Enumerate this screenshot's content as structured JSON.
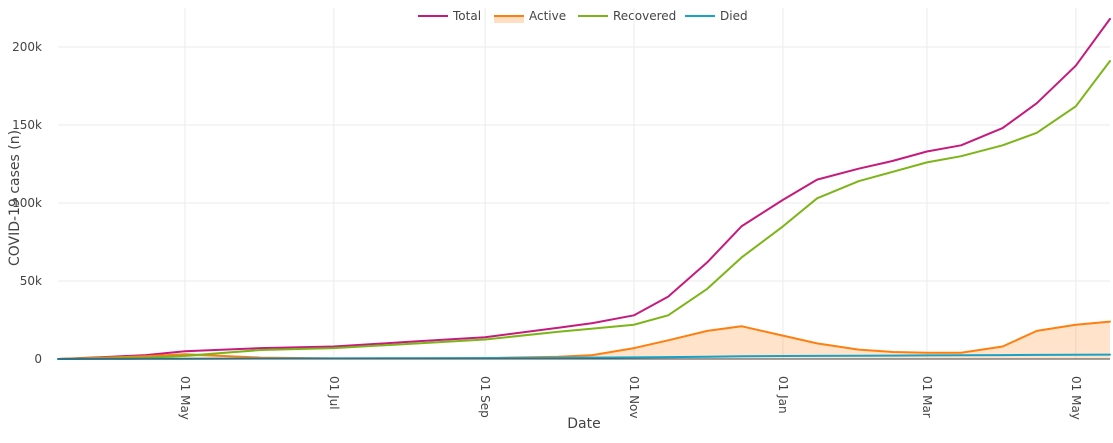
{
  "chart_data": {
    "type": "line",
    "xlabel": "Date",
    "ylabel": "COVID-19 cases (n)",
    "x_range": [
      "2020-03-10",
      "2021-05-15"
    ],
    "ylim": [
      0,
      225000
    ],
    "grid": true,
    "legend_position": "top-center",
    "x_ticks": [
      {
        "date": "2020-05-01",
        "label": "01 May"
      },
      {
        "date": "2020-07-01",
        "label": "01 Jul"
      },
      {
        "date": "2020-09-01",
        "label": "01 Sep"
      },
      {
        "date": "2020-11-01",
        "label": "01 Nov"
      },
      {
        "date": "2021-01-01",
        "label": "01 Jan"
      },
      {
        "date": "2021-03-01",
        "label": "01 Mar"
      },
      {
        "date": "2021-05-01",
        "label": "01 May"
      }
    ],
    "y_ticks": [
      {
        "value": 0,
        "label": "0"
      },
      {
        "value": 50000,
        "label": "50k"
      },
      {
        "value": 100000,
        "label": "100k"
      },
      {
        "value": 150000,
        "label": "150k"
      },
      {
        "value": 200000,
        "label": "200k"
      }
    ],
    "x": [
      "2020-03-10",
      "2020-04-01",
      "2020-04-15",
      "2020-05-01",
      "2020-06-01",
      "2020-07-01",
      "2020-08-01",
      "2020-09-01",
      "2020-10-01",
      "2020-10-15",
      "2020-11-01",
      "2020-11-15",
      "2020-12-01",
      "2020-12-15",
      "2021-01-01",
      "2021-01-15",
      "2021-02-01",
      "2021-02-15",
      "2021-03-01",
      "2021-03-15",
      "2021-04-01",
      "2021-04-15",
      "2021-05-01",
      "2021-05-15"
    ],
    "series": [
      {
        "name": "Total",
        "color": "#c51b7d",
        "values": [
          0,
          1500,
          2500,
          5000,
          7000,
          8000,
          11000,
          14000,
          20000,
          23000,
          28000,
          40000,
          62000,
          85000,
          102000,
          115000,
          122000,
          127000,
          133000,
          137000,
          148000,
          164000,
          188000,
          218000
        ]
      },
      {
        "name": "Active",
        "color": "#ff7f0e",
        "fill": true,
        "values": [
          0,
          1000,
          1800,
          3000,
          900,
          400,
          400,
          600,
          1500,
          2500,
          7000,
          12000,
          18000,
          21000,
          15000,
          10000,
          6000,
          4500,
          4000,
          4000,
          8000,
          18000,
          22000,
          24000
        ]
      },
      {
        "name": "Recovered",
        "color": "#7cb518",
        "values": [
          0,
          500,
          800,
          2000,
          5800,
          7000,
          9700,
          12500,
          17500,
          19500,
          22000,
          28000,
          45000,
          65000,
          85000,
          103000,
          114000,
          120000,
          126000,
          130000,
          137000,
          145000,
          162000,
          191000
        ]
      },
      {
        "name": "Died",
        "color": "#17a2c8",
        "values": [
          0,
          50,
          100,
          200,
          300,
          400,
          500,
          600,
          800,
          900,
          1000,
          1200,
          1500,
          1700,
          1900,
          2000,
          2100,
          2200,
          2300,
          2400,
          2500,
          2600,
          2700,
          2800
        ]
      }
    ]
  }
}
